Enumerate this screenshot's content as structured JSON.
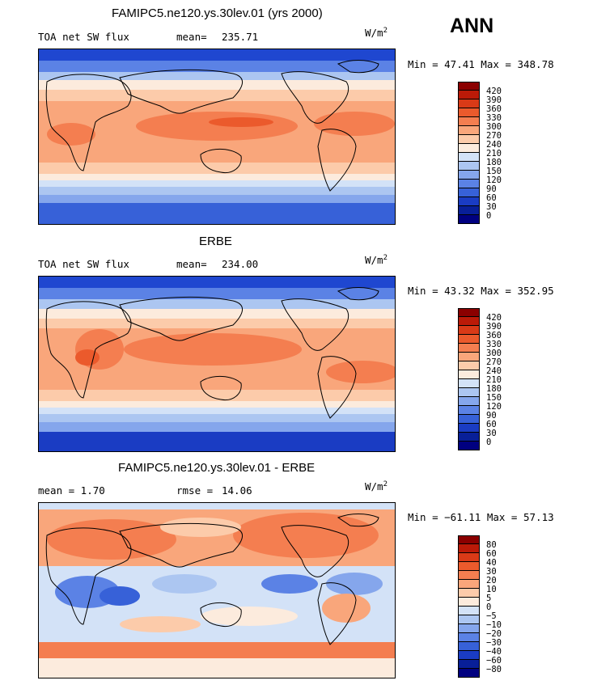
{
  "season": "ANN",
  "units_base": "W/m",
  "units_exp": "2",
  "panels": [
    {
      "title": "FAMIPC5.ne120.ys.30lev.01 (yrs 2000)",
      "left_label": "TOA net SW flux",
      "stat_label": "mean=",
      "stat_value": "235.71",
      "minmax": "Min =  47.41 Max = 348.78",
      "levels": [
        "420",
        "390",
        "360",
        "330",
        "300",
        "270",
        "240",
        "210",
        "180",
        "150",
        "120",
        "90",
        "60",
        "30",
        "0"
      ],
      "colors": [
        "#8b0000",
        "#bb1a08",
        "#d93a17",
        "#eb5a2c",
        "#f47e50",
        "#f9a67b",
        "#fccbaa",
        "#fcebdd",
        "#d3e2f7",
        "#acc6f1",
        "#85a6ec",
        "#5b82e5",
        "#3761d8",
        "#1a3cc3",
        "#081f98",
        "#000080"
      ]
    },
    {
      "title": "ERBE",
      "left_label": "TOA net SW flux",
      "stat_label": "mean=",
      "stat_value": "234.00",
      "minmax": "Min =  43.32 Max = 352.95",
      "levels": [
        "420",
        "390",
        "360",
        "330",
        "300",
        "270",
        "240",
        "210",
        "180",
        "150",
        "120",
        "90",
        "60",
        "30",
        "0"
      ],
      "colors": [
        "#8b0000",
        "#bb1a08",
        "#d93a17",
        "#eb5a2c",
        "#f47e50",
        "#f9a67b",
        "#fccbaa",
        "#fcebdd",
        "#d3e2f7",
        "#acc6f1",
        "#85a6ec",
        "#5b82e5",
        "#3761d8",
        "#1a3cc3",
        "#081f98",
        "#000080"
      ]
    },
    {
      "title": "FAMIPC5.ne120.ys.30lev.01 - ERBE",
      "left_label": "mean =   1.70",
      "stat_label": "rmse =",
      "stat_value": "14.06",
      "minmax": "Min = −61.11 Max =  57.13",
      "levels": [
        "80",
        "60",
        "40",
        "30",
        "20",
        "10",
        "5",
        "0",
        "−5",
        "−10",
        "−20",
        "−30",
        "−40",
        "−60",
        "−80"
      ],
      "colors": [
        "#8b0000",
        "#bb1a08",
        "#d93a17",
        "#eb5a2c",
        "#f47e50",
        "#f9a67b",
        "#fccbaa",
        "#fcebdd",
        "#d3e2f7",
        "#acc6f1",
        "#85a6ec",
        "#5b82e5",
        "#3761d8",
        "#1a3cc3",
        "#081f98",
        "#000080"
      ]
    }
  ]
}
